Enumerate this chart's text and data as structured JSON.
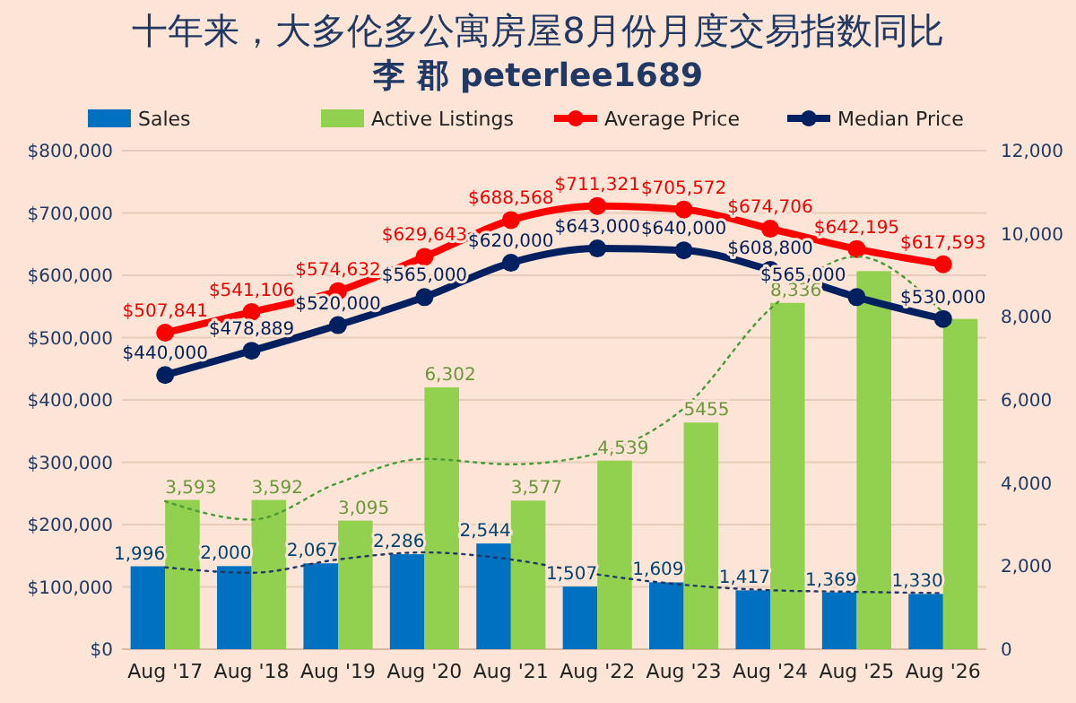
{
  "chart_data": {
    "type": "bar",
    "title": "十年来，大多伦多公寓房屋8月份月度交易指数同比",
    "subtitle": "李 郡 peterlee1689",
    "categories": [
      "Aug '17",
      "Aug '18",
      "Aug '19",
      "Aug '20",
      "Aug '21",
      "Aug '22",
      "Aug '23",
      "Aug '24",
      "Aug '25",
      "Aug '26"
    ],
    "series": [
      {
        "name": "Sales",
        "axis": "y2",
        "color": "#0070c0",
        "values": [
          1996,
          2000,
          2067,
          2286,
          2544,
          1507,
          1609,
          1417,
          1369,
          1330
        ],
        "value_labels": [
          "1,996",
          "2,000",
          "2,067",
          "2,286",
          "2,544",
          "1,507",
          "1,609",
          "1,417",
          "1,369",
          "1,330"
        ]
      },
      {
        "name": "Active Listings",
        "axis": "y2",
        "color": "#92d050",
        "values": [
          3593,
          3592,
          3095,
          6302,
          3577,
          4539,
          5455,
          8336,
          9100,
          7950
        ],
        "value_labels": [
          "3,593",
          "3,592",
          "3,095",
          "6,302",
          "3,577",
          "4,539",
          "5455",
          "8,336",
          null,
          null
        ]
      },
      {
        "name": "Average Price",
        "type": "line",
        "color": "#ff0000",
        "marker": "circle",
        "values": [
          507841,
          541106,
          574632,
          629643,
          688568,
          711321,
          705572,
          674706,
          642195,
          617593
        ],
        "value_labels": [
          "$507,841",
          "$541,106",
          "$574,632",
          "$629,643",
          "$688,568",
          "$711,321",
          "$705,572",
          "$674,706",
          "$642,195",
          "$617,593"
        ]
      },
      {
        "name": "Median Price",
        "type": "line",
        "color": "#002060",
        "marker": "circle",
        "values": [
          440000,
          478889,
          520000,
          565000,
          620000,
          643000,
          640000,
          608800,
          565000,
          530000
        ],
        "value_labels": [
          "$440,000",
          "$478,889",
          "$520,000",
          "$565,000",
          "$620,000",
          "$643,000",
          "$640,000",
          "$608,800",
          "$565,000",
          "$530,000"
        ]
      },
      {
        "type": "line",
        "axis": "y2",
        "color": "#4a9a3a",
        "line_style": "dotted",
        "marker": "none",
        "x": [
          "Aug '17",
          "Aug '18",
          "Aug '19",
          "Aug '20",
          "Aug '21",
          "Aug '22",
          "Aug '23",
          "Aug '24",
          "Aug '25",
          "Aug '26"
        ],
        "values": [
          3560,
          3120,
          4000,
          4580,
          4450,
          4710,
          5800,
          8190,
          9450,
          8100
        ]
      },
      {
        "type": "line",
        "axis": "y2",
        "color": "#1f3864",
        "line_style": "dotted",
        "marker": "none",
        "x": [
          "Aug '17",
          "Aug '18",
          "Aug '19",
          "Aug '20",
          "Aug '21",
          "Aug '22",
          "Aug '23",
          "Aug '24",
          "Aug '25",
          "Aug '26"
        ],
        "values": [
          1970,
          1840,
          2160,
          2330,
          2160,
          1800,
          1550,
          1420,
          1380,
          1350
        ]
      }
    ],
    "ylim": [
      0,
      800000
    ],
    "yticks": [
      {
        "value": 0,
        "label": "$0"
      },
      {
        "value": 100000,
        "label": "$100,000"
      },
      {
        "value": 200000,
        "label": "$200,000"
      },
      {
        "value": 300000,
        "label": "$300,000"
      },
      {
        "value": 400000,
        "label": "$400,000"
      },
      {
        "value": 500000,
        "label": "$500,000"
      },
      {
        "value": 600000,
        "label": "$600,000"
      },
      {
        "value": 700000,
        "label": "$700,000"
      },
      {
        "value": 800000,
        "label": "$800,000"
      }
    ],
    "y2lim": [
      0,
      12000
    ],
    "y2ticks": [
      0,
      {
        "value": 2000,
        "label": "2,000"
      },
      {
        "value": 4000,
        "label": "4,000"
      },
      {
        "value": 6000,
        "label": "6,000"
      },
      {
        "value": 8000,
        "label": "8,000"
      },
      {
        "value": 10000,
        "label": "10,000"
      },
      {
        "value": 12000,
        "label": "12,000"
      }
    ],
    "grid": "y",
    "legend": "top"
  }
}
